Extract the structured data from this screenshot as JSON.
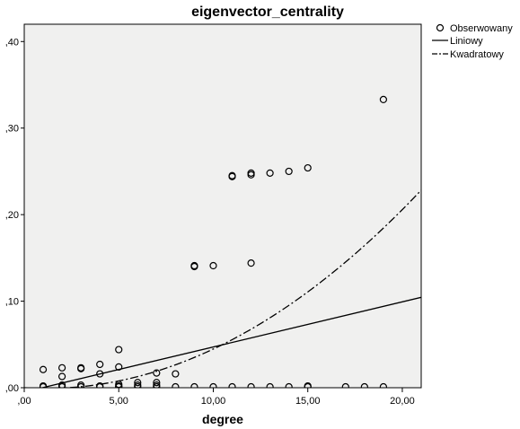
{
  "chart_data": {
    "type": "scatter",
    "title": "eigenvector_centrality",
    "xlabel": "degree",
    "ylabel": "",
    "xlim": [
      0,
      21
    ],
    "ylim": [
      0,
      0.42
    ],
    "x_ticks": [
      0,
      5,
      10,
      15,
      20
    ],
    "x_tick_labels": [
      ",00",
      "5,00",
      "10,00",
      "15,00",
      "20,00"
    ],
    "y_ticks": [
      0,
      0.1,
      0.2,
      0.3,
      0.4
    ],
    "y_tick_labels": [
      ",00",
      ",10",
      ",20",
      ",30",
      ",40"
    ],
    "grid": false,
    "legend_position": "top-right outside",
    "colors": {
      "plot_bg": "#f0f0ef",
      "line": "#000000",
      "frame": "#000000"
    },
    "series": [
      {
        "name": "Obserwowany",
        "type": "scatter",
        "marker": "open-circle",
        "points": [
          [
            1,
            0.021
          ],
          [
            1,
            0.002
          ],
          [
            1,
            0.001
          ],
          [
            2,
            0.023
          ],
          [
            2,
            0.013
          ],
          [
            2,
            0.003
          ],
          [
            2,
            0.001
          ],
          [
            3,
            0.023
          ],
          [
            3,
            0.022
          ],
          [
            3,
            0.003
          ],
          [
            3,
            0.001
          ],
          [
            4,
            0.027
          ],
          [
            4,
            0.016
          ],
          [
            4,
            0.002
          ],
          [
            4,
            0.001
          ],
          [
            5,
            0.044
          ],
          [
            5,
            0.024
          ],
          [
            5,
            0.004
          ],
          [
            5,
            0.002
          ],
          [
            5,
            0.001
          ],
          [
            6,
            0.006
          ],
          [
            6,
            0.003
          ],
          [
            6,
            0.001
          ],
          [
            7,
            0.017
          ],
          [
            7,
            0.006
          ],
          [
            7,
            0.003
          ],
          [
            7,
            0.001
          ],
          [
            8,
            0.016
          ],
          [
            8,
            0.001
          ],
          [
            9,
            0.141
          ],
          [
            9,
            0.14
          ],
          [
            9,
            0.001
          ],
          [
            10,
            0.141
          ],
          [
            10,
            0.001
          ],
          [
            11,
            0.245
          ],
          [
            11,
            0.244
          ],
          [
            11,
            0.001
          ],
          [
            12,
            0.248
          ],
          [
            12,
            0.246
          ],
          [
            12,
            0.144
          ],
          [
            12,
            0.001
          ],
          [
            13,
            0.248
          ],
          [
            13,
            0.001
          ],
          [
            14,
            0.25
          ],
          [
            14,
            0.001
          ],
          [
            15,
            0.254
          ],
          [
            15,
            0.001
          ],
          [
            15,
            0.002
          ],
          [
            17,
            0.001
          ],
          [
            18,
            0.001
          ],
          [
            19,
            0.333
          ],
          [
            19,
            0.001
          ]
        ]
      },
      {
        "name": "Liniowy",
        "type": "line",
        "style": "solid",
        "equation": {
          "intercept": -0.005,
          "slope": 0.00521
        },
        "x_range": [
          0,
          21
        ]
      },
      {
        "name": "Kwadratowy",
        "type": "line",
        "style": "dash-dot",
        "equation": {
          "a": 0.000582,
          "b": -0.00135,
          "c": 0.0
        },
        "x_range": [
          0,
          21
        ]
      }
    ]
  }
}
